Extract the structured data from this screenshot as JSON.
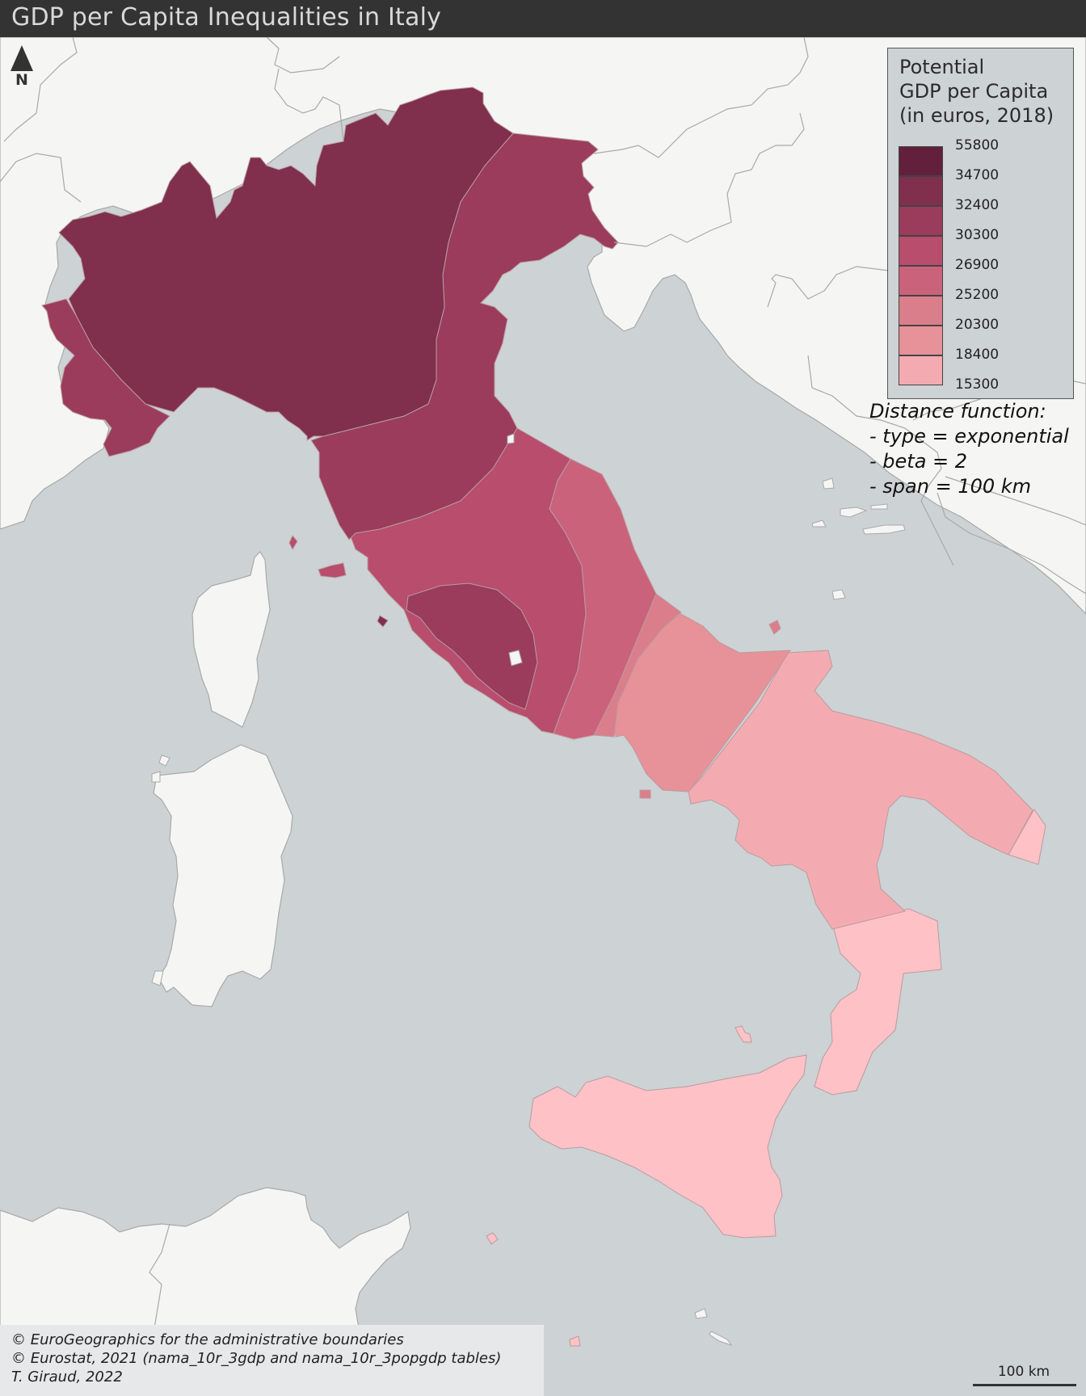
{
  "title": "GDP per Capita Inequalities in Italy",
  "north_arrow": {
    "label": "N",
    "icon": "north-arrow-icon"
  },
  "legend": {
    "title_lines": [
      "Potential",
      "GDP per Capita",
      "(in euros, 2018)"
    ],
    "breaks": [
      "55800",
      "34700",
      "32400",
      "30300",
      "26900",
      "25200",
      "20300",
      "18400",
      "15300"
    ],
    "classes": [
      {
        "from": "34700",
        "to": "55800",
        "color": "#63203d"
      },
      {
        "from": "32400",
        "to": "34700",
        "color": "#802f4c"
      },
      {
        "from": "30300",
        "to": "32400",
        "color": "#9b3c5c"
      },
      {
        "from": "26900",
        "to": "30300",
        "color": "#b84d6d"
      },
      {
        "from": "25200",
        "to": "26900",
        "color": "#cb627b"
      },
      {
        "from": "20300",
        "to": "25200",
        "color": "#db7e8b"
      },
      {
        "from": "18400",
        "to": "20300",
        "color": "#e79199"
      },
      {
        "from": "15300",
        "to": "18400",
        "color": "#f3abb1"
      }
    ]
  },
  "distance_note": [
    "Distance function:",
    "- type = exponential",
    "- beta = 2",
    "- span = 100 km"
  ],
  "credits": [
    "© EuroGeographics for the administrative boundaries",
    "© Eurostat, 2021 (nama_10r_3gdp and nama_10r_3popgdp tables)",
    "T. Giraud, 2022"
  ],
  "scale_bar": {
    "label": "100 km"
  },
  "colors": {
    "sea": "#cdd2d4",
    "land_other": "#f5f5f4",
    "border": "#a9a9a9",
    "lowest_class": "#fec1c6"
  }
}
